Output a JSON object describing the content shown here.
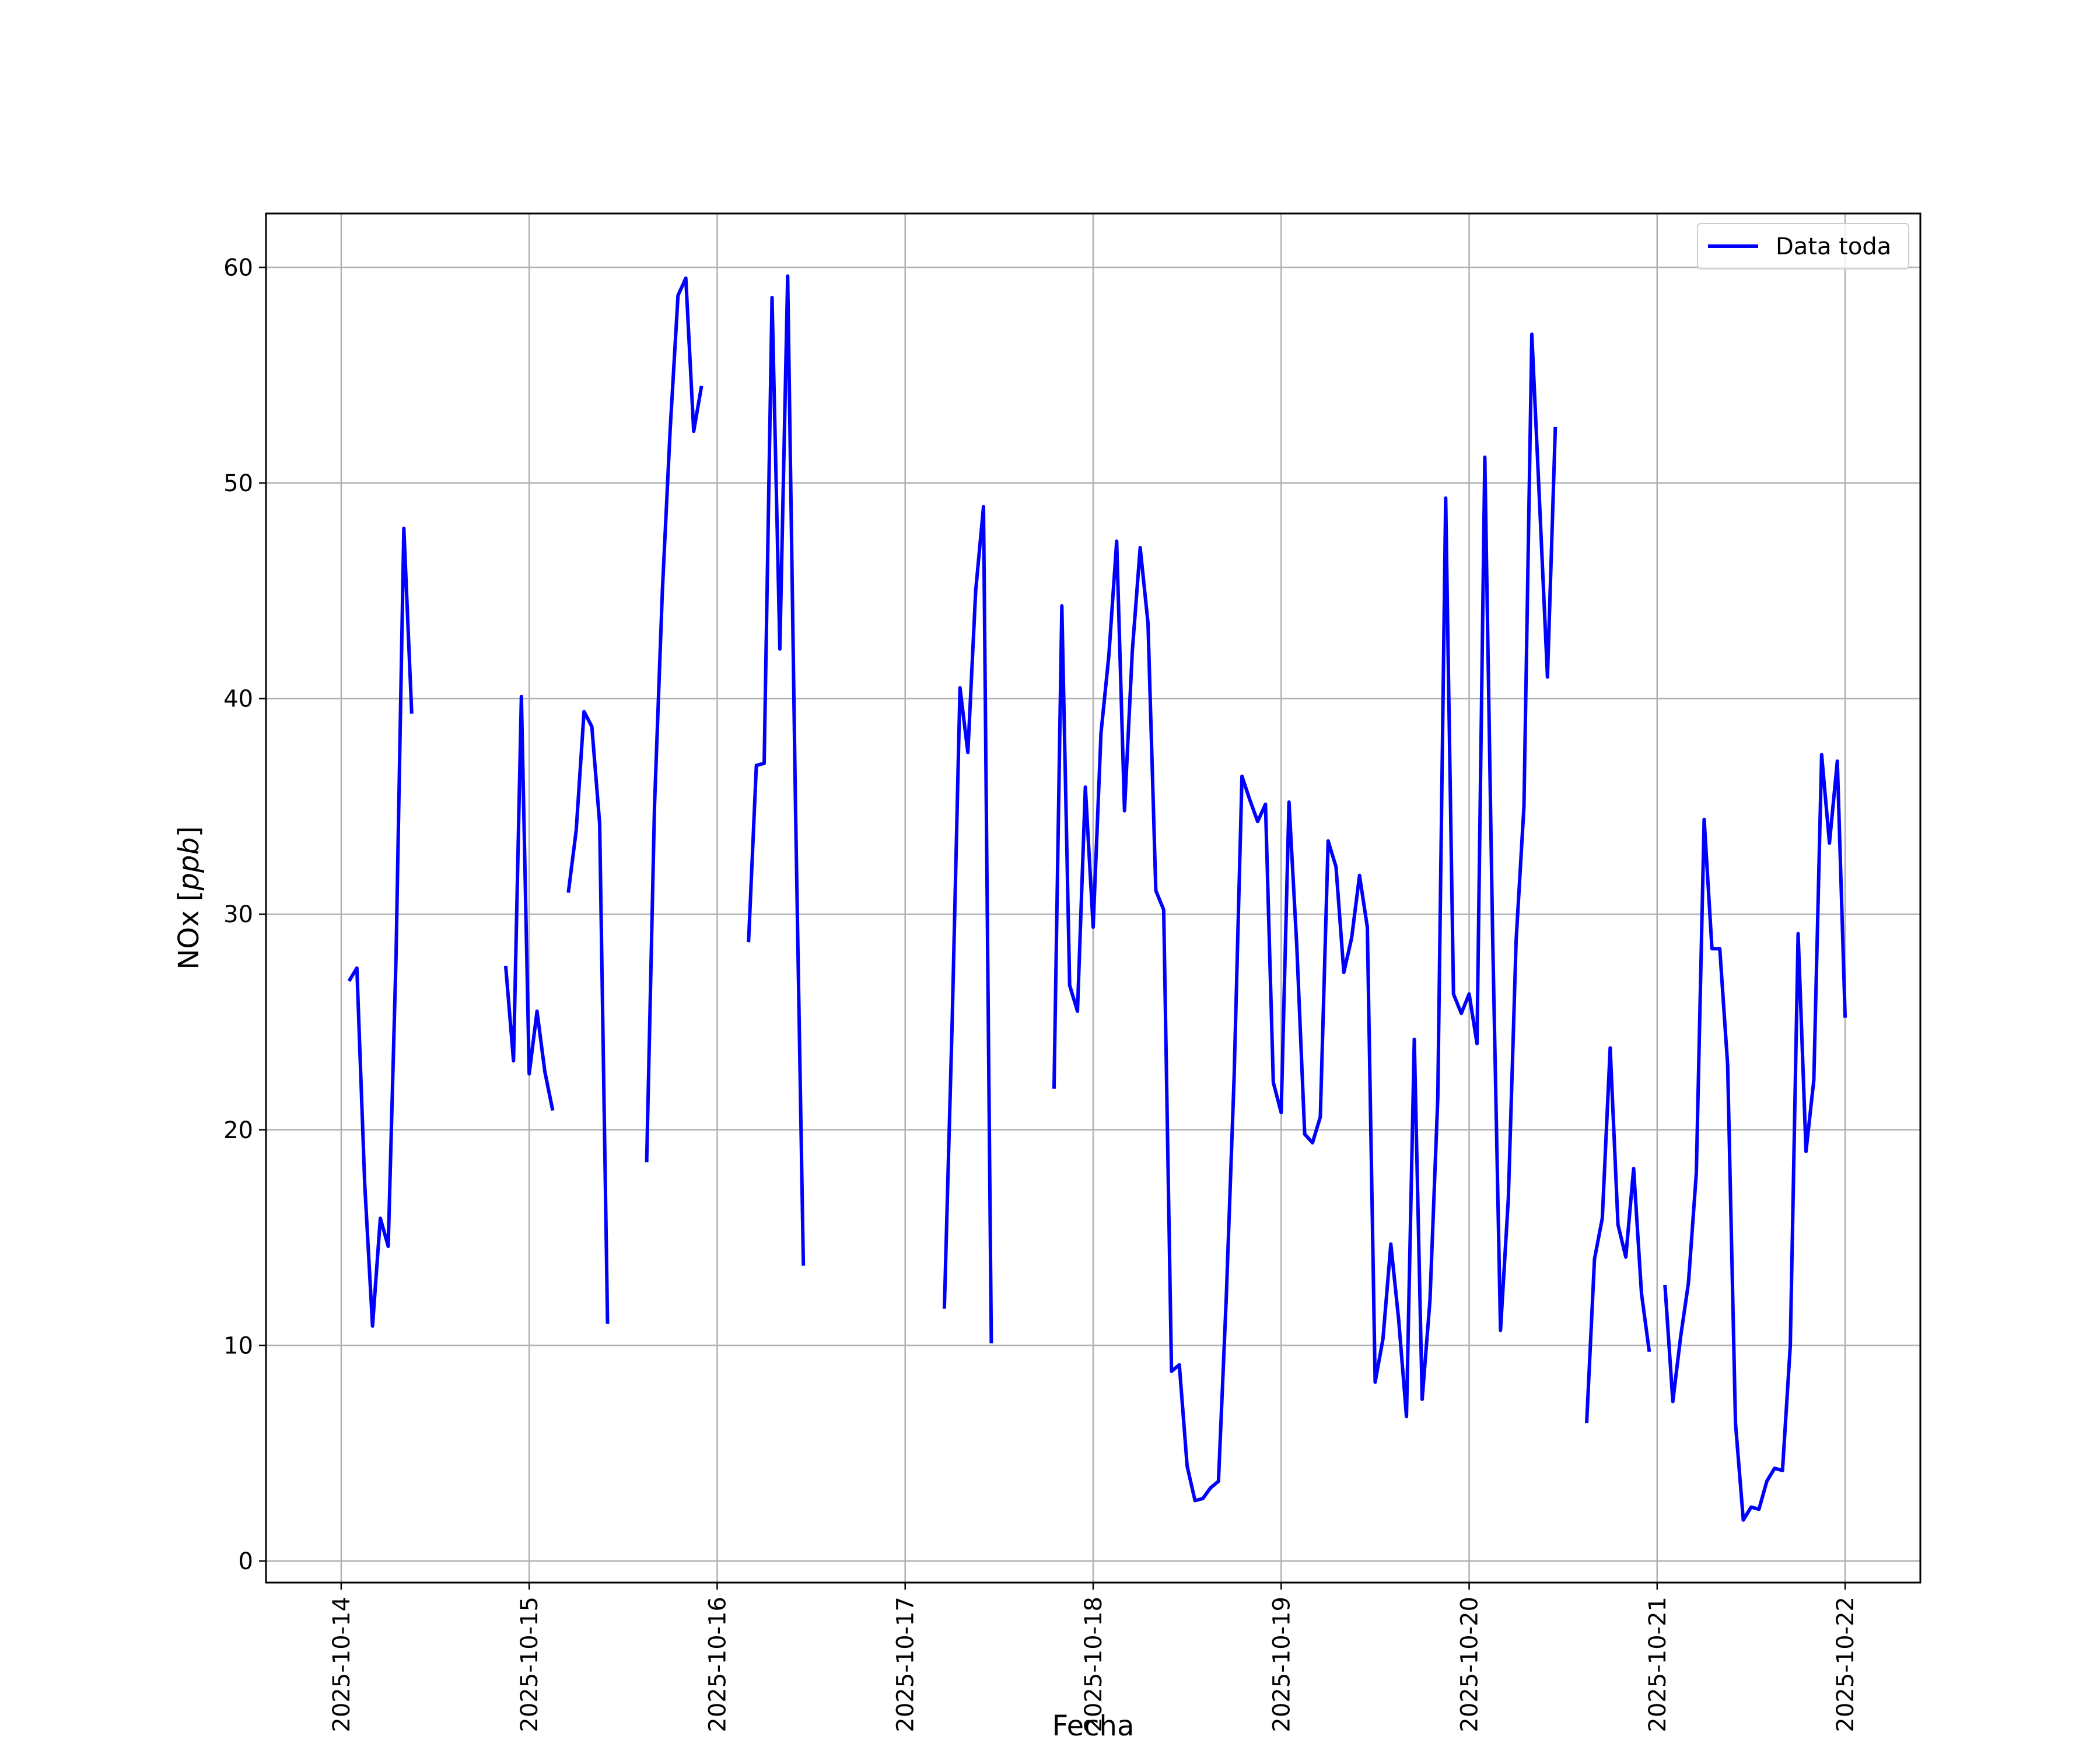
{
  "chart_data": {
    "type": "line",
    "title": "",
    "xlabel": "Fecha",
    "ylabel_prefix": "NOx [",
    "ylabel_unit": "ppb",
    "ylabel_suffix": "]",
    "xlim": [
      "2025-10-13 14:24",
      "2025-10-22 09:36"
    ],
    "ylim": [
      -1,
      62.5
    ],
    "x_ticks": [
      "2025-10-14",
      "2025-10-15",
      "2025-10-16",
      "2025-10-17",
      "2025-10-18",
      "2025-10-19",
      "2025-10-20",
      "2025-10-21",
      "2025-10-22"
    ],
    "y_ticks": [
      0,
      10,
      20,
      30,
      40,
      50,
      60
    ],
    "grid": true,
    "legend_placement": "top-right",
    "colors": {
      "series": "#0000ff",
      "grid": "#b0b0b0",
      "axes": "#000000"
    },
    "series": [
      {
        "name": "Data toda",
        "segments": [
          [
            [
              "2025-10-14 01:00",
              26.9
            ],
            [
              "2025-10-14 02:00",
              27.5
            ],
            [
              "2025-10-14 03:00",
              17.5
            ],
            [
              "2025-10-14 04:00",
              10.9
            ],
            [
              "2025-10-14 05:00",
              15.9
            ],
            [
              "2025-10-14 06:00",
              14.6
            ],
            [
              "2025-10-14 07:00",
              28.0
            ],
            [
              "2025-10-14 08:00",
              47.9
            ],
            [
              "2025-10-14 09:00",
              39.3
            ]
          ],
          [
            [
              "2025-10-14 21:00",
              27.6
            ],
            [
              "2025-10-14 22:00",
              23.2
            ],
            [
              "2025-10-14 23:00",
              40.1
            ],
            [
              "2025-10-15 00:00",
              22.6
            ],
            [
              "2025-10-15 01:00",
              25.5
            ],
            [
              "2025-10-15 02:00",
              22.7
            ],
            [
              "2025-10-15 03:00",
              20.9
            ]
          ],
          [
            [
              "2025-10-15 05:00",
              31.0
            ],
            [
              "2025-10-15 06:00",
              33.9
            ],
            [
              "2025-10-15 07:00",
              39.4
            ],
            [
              "2025-10-15 08:00",
              38.7
            ],
            [
              "2025-10-15 09:00",
              34.2
            ],
            [
              "2025-10-15 10:00",
              11.0
            ]
          ],
          [
            [
              "2025-10-15 15:00",
              18.5
            ],
            [
              "2025-10-15 16:00",
              35.0
            ],
            [
              "2025-10-15 17:00",
              45.0
            ],
            [
              "2025-10-15 18:00",
              52.5
            ],
            [
              "2025-10-15 19:00",
              58.7
            ],
            [
              "2025-10-15 20:00",
              59.5
            ],
            [
              "2025-10-15 21:00",
              52.4
            ],
            [
              "2025-10-15 22:00",
              54.5
            ]
          ],
          [
            [
              "2025-10-16 04:00",
              28.7
            ],
            [
              "2025-10-16 05:00",
              36.9
            ],
            [
              "2025-10-16 06:00",
              37.0
            ],
            [
              "2025-10-16 07:00",
              58.6
            ],
            [
              "2025-10-16 08:00",
              42.3
            ],
            [
              "2025-10-16 09:00",
              59.6
            ],
            [
              "2025-10-16 10:00",
              35.0
            ],
            [
              "2025-10-16 11:00",
              13.7
            ]
          ],
          [
            [
              "2025-10-17 05:00",
              11.7
            ],
            [
              "2025-10-17 06:00",
              25.0
            ],
            [
              "2025-10-17 07:00",
              40.5
            ],
            [
              "2025-10-17 08:00",
              37.5
            ],
            [
              "2025-10-17 09:00",
              45.0
            ],
            [
              "2025-10-17 10:00",
              48.9
            ],
            [
              "2025-10-17 11:00",
              10.1
            ]
          ],
          [
            [
              "2025-10-17 19:00",
              21.9
            ],
            [
              "2025-10-17 20:00",
              44.3
            ],
            [
              "2025-10-17 21:00",
              26.7
            ],
            [
              "2025-10-17 22:00",
              25.5
            ],
            [
              "2025-10-17 23:00",
              35.9
            ],
            [
              "2025-10-18 00:00",
              29.4
            ],
            [
              "2025-10-18 01:00",
              38.4
            ],
            [
              "2025-10-18 02:00",
              42.0
            ],
            [
              "2025-10-18 03:00",
              47.3
            ],
            [
              "2025-10-18 04:00",
              34.8
            ],
            [
              "2025-10-18 05:00",
              42.2
            ],
            [
              "2025-10-18 06:00",
              47.0
            ],
            [
              "2025-10-18 07:00",
              43.5
            ],
            [
              "2025-10-18 08:00",
              31.1
            ],
            [
              "2025-10-18 09:00",
              30.2
            ],
            [
              "2025-10-18 10:00",
              8.8
            ],
            [
              "2025-10-18 11:00",
              9.1
            ],
            [
              "2025-10-18 12:00",
              4.4
            ],
            [
              "2025-10-18 13:00",
              2.8
            ],
            [
              "2025-10-18 14:00",
              2.9
            ],
            [
              "2025-10-18 15:00",
              3.4
            ],
            [
              "2025-10-18 16:00",
              3.7
            ],
            [
              "2025-10-18 17:00",
              12.3
            ],
            [
              "2025-10-18 18:00",
              22.5
            ],
            [
              "2025-10-18 19:00",
              36.4
            ],
            [
              "2025-10-18 20:00",
              35.3
            ],
            [
              "2025-10-18 21:00",
              34.3
            ],
            [
              "2025-10-18 22:00",
              35.1
            ],
            [
              "2025-10-18 23:00",
              22.2
            ],
            [
              "2025-10-19 00:00",
              20.8
            ],
            [
              "2025-10-19 01:00",
              35.2
            ],
            [
              "2025-10-19 02:00",
              28.5
            ],
            [
              "2025-10-19 03:00",
              19.8
            ],
            [
              "2025-10-19 04:00",
              19.4
            ],
            [
              "2025-10-19 05:00",
              20.6
            ],
            [
              "2025-10-19 06:00",
              33.4
            ],
            [
              "2025-10-19 07:00",
              32.2
            ],
            [
              "2025-10-19 08:00",
              27.3
            ],
            [
              "2025-10-19 09:00",
              28.9
            ],
            [
              "2025-10-19 10:00",
              31.8
            ],
            [
              "2025-10-19 11:00",
              29.4
            ],
            [
              "2025-10-19 12:00",
              8.3
            ],
            [
              "2025-10-19 13:00",
              10.3
            ],
            [
              "2025-10-19 14:00",
              14.7
            ],
            [
              "2025-10-19 15:00",
              11.2
            ],
            [
              "2025-10-19 16:00",
              6.7
            ],
            [
              "2025-10-19 17:00",
              24.2
            ],
            [
              "2025-10-19 18:00",
              7.5
            ],
            [
              "2025-10-19 19:00",
              12.1
            ],
            [
              "2025-10-19 20:00",
              21.5
            ],
            [
              "2025-10-19 21:00",
              49.3
            ],
            [
              "2025-10-19 22:00",
              26.3
            ],
            [
              "2025-10-19 23:00",
              25.4
            ],
            [
              "2025-10-20 00:00",
              26.3
            ],
            [
              "2025-10-20 01:00",
              24.0
            ],
            [
              "2025-10-20 02:00",
              51.2
            ],
            [
              "2025-10-20 03:00",
              29.0
            ],
            [
              "2025-10-20 04:00",
              10.7
            ],
            [
              "2025-10-20 05:00",
              16.8
            ],
            [
              "2025-10-20 06:00",
              28.8
            ],
            [
              "2025-10-20 07:00",
              35.0
            ],
            [
              "2025-10-20 08:00",
              56.9
            ],
            [
              "2025-10-20 09:00",
              49.0
            ],
            [
              "2025-10-20 10:00",
              41.0
            ],
            [
              "2025-10-20 11:00",
              52.6
            ]
          ],
          [
            [
              "2025-10-20 15:00",
              6.4
            ],
            [
              "2025-10-20 16:00",
              14.0
            ],
            [
              "2025-10-20 17:00",
              15.9
            ],
            [
              "2025-10-20 18:00",
              23.8
            ],
            [
              "2025-10-20 19:00",
              15.6
            ],
            [
              "2025-10-20 20:00",
              14.1
            ],
            [
              "2025-10-20 21:00",
              18.2
            ],
            [
              "2025-10-20 22:00",
              12.4
            ],
            [
              "2025-10-20 23:00",
              9.7
            ]
          ],
          [
            [
              "2025-10-21 01:00",
              12.8
            ],
            [
              "2025-10-21 02:00",
              7.4
            ],
            [
              "2025-10-21 03:00",
              10.4
            ],
            [
              "2025-10-21 04:00",
              12.9
            ],
            [
              "2025-10-21 05:00",
              18.0
            ],
            [
              "2025-10-21 06:00",
              34.4
            ],
            [
              "2025-10-21 07:00",
              28.4
            ],
            [
              "2025-10-21 08:00",
              28.4
            ],
            [
              "2025-10-21 09:00",
              23.0
            ],
            [
              "2025-10-21 10:00",
              6.4
            ],
            [
              "2025-10-21 11:00",
              1.9
            ],
            [
              "2025-10-21 12:00",
              2.5
            ],
            [
              "2025-10-21 13:00",
              2.4
            ],
            [
              "2025-10-21 14:00",
              3.7
            ],
            [
              "2025-10-21 15:00",
              4.3
            ],
            [
              "2025-10-21 16:00",
              4.2
            ],
            [
              "2025-10-21 17:00",
              10.0
            ],
            [
              "2025-10-21 18:00",
              29.1
            ],
            [
              "2025-10-21 19:00",
              19.0
            ],
            [
              "2025-10-21 20:00",
              22.3
            ],
            [
              "2025-10-21 21:00",
              37.4
            ],
            [
              "2025-10-21 22:00",
              33.3
            ],
            [
              "2025-10-21 23:00",
              37.1
            ],
            [
              "2025-10-22 00:00",
              25.2
            ]
          ]
        ]
      }
    ]
  }
}
